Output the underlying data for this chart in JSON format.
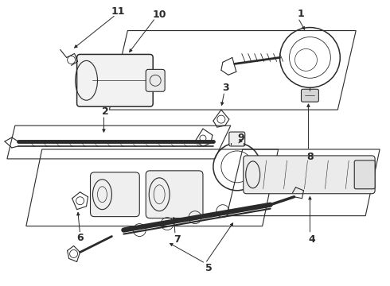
{
  "bg_color": "#ffffff",
  "lc": "#2a2a2a",
  "lw": 0.8,
  "figsize": [
    4.9,
    3.6
  ],
  "dpi": 100
}
